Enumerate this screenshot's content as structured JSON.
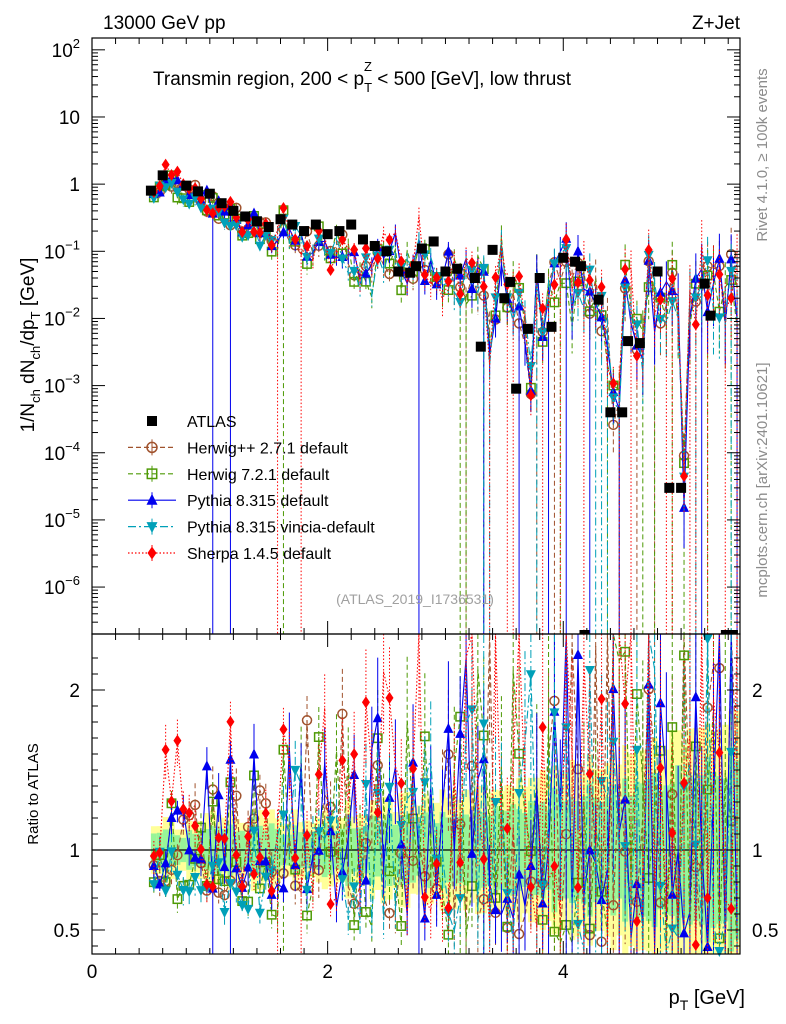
{
  "chart_data": {
    "type": "scatter",
    "header_left": "13000 GeV pp",
    "header_right": "Z+Jet",
    "title_parts": {
      "pre": "Transmin region, 200 < p",
      "sub": "T",
      "sup": "Z",
      "post": " < 500 [GeV], low thrust"
    },
    "ylabel_parts": {
      "a": "1/N",
      "a_sub": "ch",
      "b": " dN",
      "b_sub": "ch",
      "c": "/dp",
      "c_sub": "T",
      "d": " [GeV]"
    },
    "xlabel_parts": {
      "p": "p",
      "sub": "T",
      "unit": " [GeV]"
    },
    "ratio_ylabel": "Ratio to ATLAS",
    "side_label_1": "Rivet 4.1.0, ≥ 100k events",
    "side_label_2": "mcplots.cern.ch [arXiv:2401.10621]",
    "reference": "(ATLAS_2019_I1736531)",
    "x_axis": {
      "min": 0,
      "max": 5.5,
      "ticks": [
        0,
        2,
        4
      ],
      "tick_labels": [
        "0",
        "2",
        "4"
      ]
    },
    "y_axis": {
      "scale": "log",
      "min": 2e-07,
      "max": 150,
      "ticks": [
        1e-06,
        1e-05,
        0.0001,
        0.001,
        0.01,
        0.1,
        1,
        10,
        100
      ],
      "tick_labels": [
        {
          "b": "10",
          "e": "−6"
        },
        {
          "b": "10",
          "e": "−5"
        },
        {
          "b": "10",
          "e": "−4"
        },
        {
          "b": "10",
          "e": "−3"
        },
        {
          "b": "10",
          "e": "−2"
        },
        {
          "b": "10",
          "e": "−1"
        },
        {
          "b": "1",
          "e": ""
        },
        {
          "b": "10",
          "e": ""
        },
        {
          "b": "10",
          "e": "2"
        }
      ]
    },
    "ratio_axis": {
      "min": 0.35,
      "max": 2.35,
      "ticks": [
        0.5,
        1,
        2
      ],
      "tick_labels": [
        "0.5",
        "1",
        "2"
      ]
    },
    "bins": {
      "start": 0.5,
      "width": 0.05,
      "count": 100
    },
    "data_log10": [
      -0.1,
      -0.02,
      0.08,
      0.02,
      -0.04,
      -0.1,
      -0.16,
      -0.12,
      -0.22,
      -0.28,
      -0.32,
      -0.38,
      -0.36,
      -0.52,
      -0.48,
      -0.6,
      -0.56,
      -0.64,
      -0.7,
      -0.68,
      -0.78,
      -0.74,
      -0.6,
      -0.88,
      -0.8,
      -0.92,
      -0.96,
      -1.0,
      -0.86,
      -1.04,
      -1.1,
      -0.9,
      -1.02,
      -1.08,
      -1.18,
      -1.3,
      -1.24,
      -1.4,
      -1.2,
      -1.05,
      -1.12,
      -0.9,
      -1.3,
      -1.25,
      -1.38,
      -0.85,
      -1.2,
      -1.28,
      -1.35,
      -1.5,
      -1.25,
      -1.3,
      -1.6,
      -1.45,
      -1.55,
      -1.4,
      -1.5,
      -2.42,
      -1.8,
      -0.97,
      -1.55,
      -1.68,
      -1.75,
      -2.16,
      -3.03,
      -1.4,
      -2.1,
      -1.7,
      -1.45,
      -1.1,
      -1.2,
      -1.75,
      -1.35,
      -1.42,
      -1.6,
      -1.75,
      -1.82,
      -2.38,
      -3.4,
      -3.4,
      -1.55,
      -1.72,
      -2.3,
      -2.35,
      -1.45,
      -1.8,
      -1.9,
      -1.6,
      -1.45,
      -1.65,
      -4.5,
      -1.8,
      -1.7,
      -1.27,
      -1.5,
      -1.6,
      -1.55,
      -1.7,
      -1.5,
      -1.7
    ],
    "data_markers": [
      {
        "x": 0.5,
        "y": 0.8
      },
      {
        "x": 0.6,
        "y": 1.35
      },
      {
        "x": 0.8,
        "y": 0.95
      },
      {
        "x": 0.9,
        "y": 0.78
      },
      {
        "x": 1.0,
        "y": 0.72
      },
      {
        "x": 1.1,
        "y": 0.52
      },
      {
        "x": 1.2,
        "y": 0.4
      },
      {
        "x": 1.3,
        "y": 0.33
      },
      {
        "x": 1.4,
        "y": 0.28
      },
      {
        "x": 1.5,
        "y": 0.23
      },
      {
        "x": 1.6,
        "y": 0.3
      },
      {
        "x": 1.7,
        "y": 0.25
      },
      {
        "x": 1.8,
        "y": 0.2
      },
      {
        "x": 1.9,
        "y": 0.25
      },
      {
        "x": 2.0,
        "y": 0.18
      },
      {
        "x": 2.1,
        "y": 0.2
      },
      {
        "x": 2.2,
        "y": 0.25
      },
      {
        "x": 2.3,
        "y": 0.15
      },
      {
        "x": 2.4,
        "y": 0.12
      },
      {
        "x": 2.5,
        "y": 0.1
      },
      {
        "x": 2.6,
        "y": 0.05
      },
      {
        "x": 2.7,
        "y": 0.048
      },
      {
        "x": 2.75,
        "y": 0.06
      },
      {
        "x": 2.8,
        "y": 0.11
      },
      {
        "x": 2.9,
        "y": 0.14
      },
      {
        "x": 3.0,
        "y": 0.05
      },
      {
        "x": 3.1,
        "y": 0.055
      },
      {
        "x": 3.25,
        "y": 0.04
      },
      {
        "x": 3.3,
        "y": 0.0038
      },
      {
        "x": 3.4,
        "y": 0.105
      },
      {
        "x": 3.5,
        "y": 0.02
      },
      {
        "x": 3.55,
        "y": 0.035
      },
      {
        "x": 3.6,
        "y": 0.0009
      },
      {
        "x": 3.7,
        "y": 0.007
      },
      {
        "x": 3.8,
        "y": 0.04
      },
      {
        "x": 3.9,
        "y": 0.0075
      },
      {
        "x": 4.0,
        "y": 0.08
      },
      {
        "x": 4.1,
        "y": 0.07
      },
      {
        "x": 4.15,
        "y": 0.06
      },
      {
        "x": 4.3,
        "y": 0.019
      },
      {
        "x": 4.4,
        "y": 0.0004
      },
      {
        "x": 4.5,
        "y": 0.0004
      },
      {
        "x": 4.55,
        "y": 0.0046
      },
      {
        "x": 4.65,
        "y": 0.0043
      },
      {
        "x": 4.8,
        "y": 0.05
      },
      {
        "x": 4.9,
        "y": 3e-05
      },
      {
        "x": 5.0,
        "y": 3e-05
      },
      {
        "x": 5.2,
        "y": 0.033
      },
      {
        "x": 5.25,
        "y": 0.011
      }
    ],
    "series": [
      {
        "name": "ATLAS",
        "color": "#000000",
        "marker": "square",
        "dash": ""
      },
      {
        "name": "Herwig++ 2.7.1 default",
        "color": "#a0522d",
        "marker": "circle",
        "dash": "5,3",
        "seed": 11,
        "spread": 0.14,
        "bias": 0.03
      },
      {
        "name": "Herwig 7.2.1 default",
        "color": "#4e9a06",
        "marker": "square-open",
        "dash": "5,3",
        "seed": 23,
        "spread": 0.15,
        "bias": -0.02
      },
      {
        "name": "Pythia 8.315 default",
        "color": "#0000ee",
        "marker": "triangle-up",
        "dash": "",
        "seed": 37,
        "spread": 0.13,
        "bias": 0.02
      },
      {
        "name": "Pythia 8.315 vincia-default",
        "color": "#00a0b8",
        "marker": "triangle-down",
        "dash": "8,3,2,3",
        "seed": 53,
        "spread": 0.13,
        "bias": -0.04
      },
      {
        "name": "Sherpa 1.4.5 default",
        "color": "#ff0000",
        "marker": "diamond",
        "dash": "1.5,2",
        "seed": 71,
        "spread": 0.16,
        "bias": 0.06
      }
    ]
  }
}
